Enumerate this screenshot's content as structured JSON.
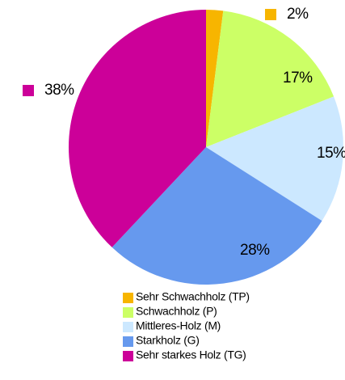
{
  "chart_data": {
    "type": "pie",
    "categories": [
      "Sehr Schwachholz (TP)",
      "Schwachholz (P)",
      "Mittleres-Holz (M)",
      "Starkholz (G)",
      "Sehr starkes Holz (TG)"
    ],
    "values": [
      2,
      17,
      15,
      28,
      38
    ],
    "value_labels": [
      "2%",
      "17%",
      "15%",
      "28%",
      "38%"
    ],
    "colors": [
      "#f7b500",
      "#ccff66",
      "#cce8ff",
      "#6699ee",
      "#cc0099"
    ],
    "legend": "bottom"
  }
}
